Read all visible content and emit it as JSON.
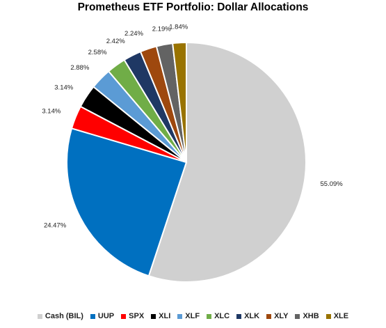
{
  "chart_data": {
    "type": "pie",
    "title": "Prometheus ETF Portfolio: Dollar Allocations",
    "slices": [
      {
        "label": "Cash (BIL)",
        "value": 55.09,
        "value_label": "55.09%",
        "color": "#d0d0d0"
      },
      {
        "label": "UUP",
        "value": 24.47,
        "value_label": "24.47%",
        "color": "#0070c0"
      },
      {
        "label": "SPX",
        "value": 3.14,
        "value_label": "3.14%",
        "color": "#ff0000"
      },
      {
        "label": "XLI",
        "value": 3.14,
        "value_label": "3.14%",
        "color": "#000000"
      },
      {
        "label": "XLF",
        "value": 2.88,
        "value_label": "2.88%",
        "color": "#5b9bd5"
      },
      {
        "label": "XLC",
        "value": 2.58,
        "value_label": "2.58%",
        "color": "#70ad47"
      },
      {
        "label": "XLK",
        "value": 2.42,
        "value_label": "2.42%",
        "color": "#1f3864"
      },
      {
        "label": "XLY",
        "value": 2.24,
        "value_label": "2.24%",
        "color": "#9e480e"
      },
      {
        "label": "XHB",
        "value": 2.19,
        "value_label": "2.19%",
        "color": "#636363"
      },
      {
        "label": "XLE",
        "value": 1.84,
        "value_label": "1.84%",
        "color": "#997300"
      }
    ],
    "legend_position": "bottom"
  }
}
